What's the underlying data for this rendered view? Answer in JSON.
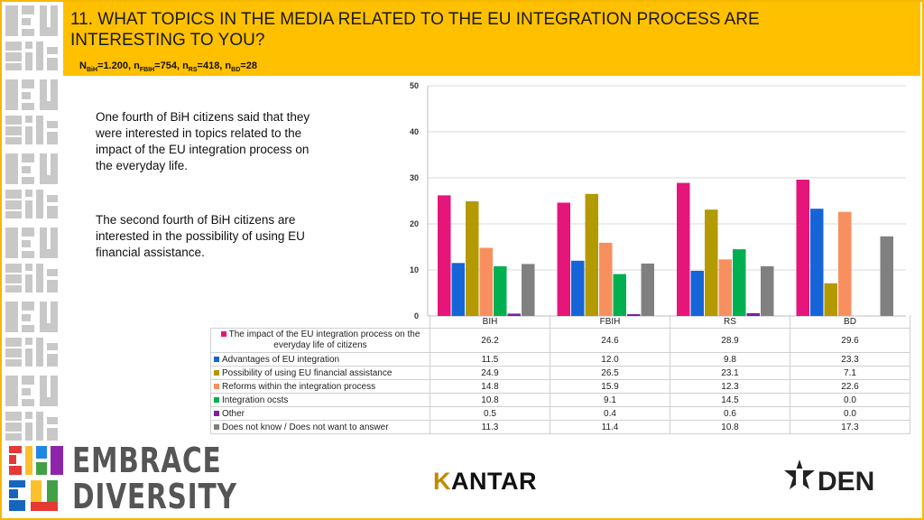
{
  "header": {
    "title": "11. WHAT TOPICS IN THE MEDIA RELATED TO THE EU INTEGRATION PROCESS ARE INTERESTING TO YOU?",
    "sample": {
      "n_bih_label": "N",
      "n_bih_sub": "BiH",
      "n_bih_val": "=1.200, ",
      "n_fbih_label": "n",
      "n_fbih_sub": "FBIH",
      "n_fbih_val": "=754, ",
      "n_rs_label": "n",
      "n_rs_sub": "RS",
      "n_rs_val": "=418, ",
      "n_bd_label": "n",
      "n_bd_sub": "BD",
      "n_bd_val": "=28"
    }
  },
  "text": {
    "p1": "One fourth of BiH citizens said that they were interested in topics related to the impact of the EU integration process on the everyday life.",
    "p2": "The second fourth of BiH citizens are interested in the possibility of using EU financial assistance."
  },
  "logos": {
    "embrace_line1": "EMBRACE",
    "embrace_line2": "DIVERSITY",
    "kantar_k": "K",
    "kantar_rest": "ANTAR",
    "cden": "DEN"
  },
  "chart_data": {
    "type": "bar",
    "categories": [
      "BIH",
      "FBIH",
      "RS",
      "BD"
    ],
    "ylim": [
      0,
      50
    ],
    "yticks": [
      0,
      10,
      20,
      30,
      40,
      50
    ],
    "grid": true,
    "series": [
      {
        "name": "The impact of the EU integration process on the everyday life of citizens",
        "color": "#e6157a",
        "values": [
          26.2,
          24.6,
          28.9,
          29.6
        ]
      },
      {
        "name": "Advantages of EU integration",
        "color": "#1565d8",
        "values": [
          11.5,
          12.0,
          9.8,
          23.3
        ]
      },
      {
        "name": "Possibility of using EU financial assistance",
        "color": "#b39a00",
        "values": [
          24.9,
          26.5,
          23.1,
          7.1
        ]
      },
      {
        "name": "Reforms within the integration process",
        "color": "#f7905e",
        "values": [
          14.8,
          15.9,
          12.3,
          22.6
        ]
      },
      {
        "name": "Integration ocsts",
        "color": "#00b050",
        "values": [
          10.8,
          9.1,
          14.5,
          0.0
        ]
      },
      {
        "name": "Other",
        "color": "#7b1fa2",
        "values": [
          0.5,
          0.4,
          0.6,
          0.0
        ]
      },
      {
        "name": "Does not know / Does not want to answer",
        "color": "#808080",
        "values": [
          11.3,
          11.4,
          10.8,
          17.3
        ]
      }
    ]
  },
  "table": {
    "rows": [
      {
        "label": "The impact of the EU integration process on the everyday life of citizens",
        "values": [
          "26.2",
          "24.6",
          "28.9",
          "29.6"
        ]
      },
      {
        "label": "Advantages of EU integration",
        "values": [
          "11.5",
          "12.0",
          "9.8",
          "23.3"
        ]
      },
      {
        "label": "Possibility of using EU financial assistance",
        "values": [
          "24.9",
          "26.5",
          "23.1",
          "7.1"
        ]
      },
      {
        "label": "Reforms within the integration process",
        "values": [
          "14.8",
          "15.9",
          "12.3",
          "22.6"
        ]
      },
      {
        "label": "Integration ocsts",
        "values": [
          "10.8",
          "9.1",
          "14.5",
          "0.0"
        ]
      },
      {
        "label": "Other",
        "values": [
          "0.5",
          "0.4",
          "0.6",
          "0.0"
        ]
      },
      {
        "label": "Does not know / Does not want to answer",
        "values": [
          "11.3",
          "11.4",
          "10.8",
          "17.3"
        ]
      }
    ]
  }
}
